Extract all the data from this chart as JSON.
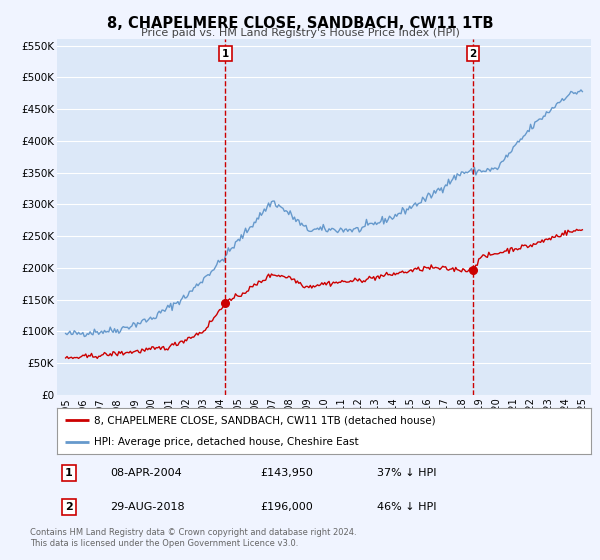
{
  "title": "8, CHAPELMERE CLOSE, SANDBACH, CW11 1TB",
  "subtitle": "Price paid vs. HM Land Registry's House Price Index (HPI)",
  "ylabel_ticks": [
    "£0",
    "£50K",
    "£100K",
    "£150K",
    "£200K",
    "£250K",
    "£300K",
    "£350K",
    "£400K",
    "£450K",
    "£500K",
    "£550K"
  ],
  "ytick_values": [
    0,
    50000,
    100000,
    150000,
    200000,
    250000,
    300000,
    350000,
    400000,
    450000,
    500000,
    550000
  ],
  "ylim": [
    0,
    560000
  ],
  "xlim_start": 1994.5,
  "xlim_end": 2025.5,
  "background_color": "#f0f4ff",
  "plot_bg_color": "#dce8f8",
  "grid_color": "#ffffff",
  "red_line_color": "#cc0000",
  "blue_line_color": "#6699cc",
  "vline_color": "#cc0000",
  "marker_color": "#cc0000",
  "sale1_x": 2004.27,
  "sale1_y": 143950,
  "sale1_label": "1",
  "sale1_date": "08-APR-2004",
  "sale1_price": "£143,950",
  "sale1_note": "37% ↓ HPI",
  "sale2_x": 2018.66,
  "sale2_y": 196000,
  "sale2_label": "2",
  "sale2_date": "29-AUG-2018",
  "sale2_price": "£196,000",
  "sale2_note": "46% ↓ HPI",
  "legend_red_label": "8, CHAPELMERE CLOSE, SANDBACH, CW11 1TB (detached house)",
  "legend_blue_label": "HPI: Average price, detached house, Cheshire East",
  "footer_line1": "Contains HM Land Registry data © Crown copyright and database right 2024.",
  "footer_line2": "This data is licensed under the Open Government Licence v3.0.",
  "xtick_years": [
    1995,
    1996,
    1997,
    1998,
    1999,
    2000,
    2001,
    2002,
    2003,
    2004,
    2005,
    2006,
    2007,
    2008,
    2009,
    2010,
    2011,
    2012,
    2013,
    2014,
    2015,
    2016,
    2017,
    2018,
    2019,
    2020,
    2021,
    2022,
    2023,
    2024,
    2025
  ]
}
